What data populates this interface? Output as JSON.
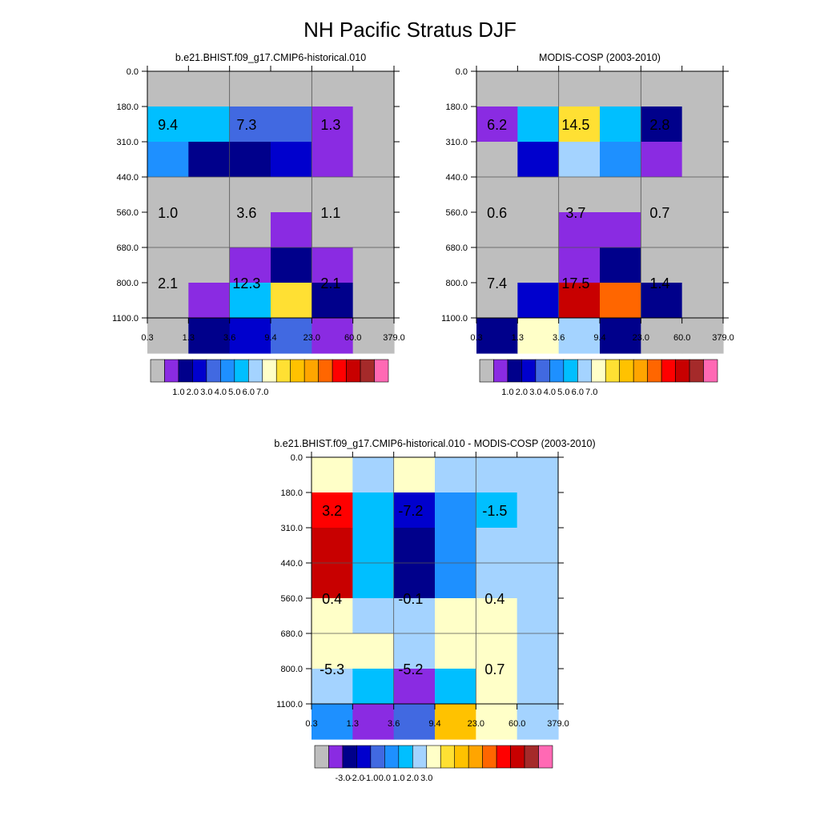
{
  "title": "NH Pacific Stratus DJF",
  "palettes": {
    "main": [
      "#bebebe",
      "#8a2be2",
      "#00008b",
      "#0000cd",
      "#4169e1",
      "#1e90ff",
      "#00bfff",
      "#a4d3ff",
      "#ffffc8",
      "#ffe033",
      "#ffc200",
      "#ffa500",
      "#ff6600",
      "#ff0000",
      "#c80000",
      "#a52a2a",
      "#ff69b4"
    ],
    "diff": [
      "#bebebe",
      "#8a2be2",
      "#00008b",
      "#0000cd",
      "#4169e1",
      "#1e90ff",
      "#00bfff",
      "#a4d3ff",
      "#ffffc8",
      "#ffe033",
      "#ffc200",
      "#ffa500",
      "#ff6600",
      "#ff0000",
      "#c80000",
      "#a52a2a",
      "#ff69b4"
    ]
  },
  "chart_data": [
    {
      "type": "heatmap",
      "title": "b.e21.BHIST.f09_g17.CMIP6-historical.010",
      "x_ticks": [
        "0.3",
        "1.3",
        "3.6",
        "9.4",
        "23.0",
        "60.0",
        "379.0"
      ],
      "y_ticks": [
        "0.0",
        "180.0",
        "310.0",
        "440.0",
        "560.0",
        "680.0",
        "800.0",
        "1100.0"
      ],
      "cells": [
        [
          0,
          0,
          0,
          0,
          0,
          0
        ],
        [
          6,
          6,
          4,
          4,
          1,
          0
        ],
        [
          5,
          2,
          2,
          3,
          1,
          0
        ],
        [
          0,
          0,
          0,
          0,
          0,
          0
        ],
        [
          0,
          0,
          0,
          1,
          0,
          0
        ],
        [
          0,
          0,
          1,
          2,
          1,
          0
        ],
        [
          0,
          1,
          6,
          9,
          2,
          0
        ],
        [
          0,
          2,
          3,
          4,
          1,
          0
        ]
      ],
      "labels": [
        {
          "text": "9.4",
          "x": 0.8,
          "y": 245
        },
        {
          "text": "7.3",
          "x": 6.0,
          "y": 245
        },
        {
          "text": "1.3",
          "x": 40.0,
          "y": 245
        },
        {
          "text": "1.0",
          "x": 0.8,
          "y": 560
        },
        {
          "text": "3.6",
          "x": 6.0,
          "y": 560
        },
        {
          "text": "1.1",
          "x": 40.0,
          "y": 560
        },
        {
          "text": "2.1",
          "x": 0.8,
          "y": 800
        },
        {
          "text": "12.3",
          "x": 6.0,
          "y": 800
        },
        {
          "text": "2.1",
          "x": 40.0,
          "y": 800
        }
      ],
      "colorbar": {
        "palette": "main",
        "labels": [
          "1.0",
          "2.0",
          "3.0",
          "4.0",
          "5.0",
          "6.0",
          "7.0"
        ]
      }
    },
    {
      "type": "heatmap",
      "title": "MODIS-COSP (2003-2010)",
      "x_ticks": [
        "0.3",
        "1.3",
        "3.6",
        "9.4",
        "23.0",
        "60.0",
        "379.0"
      ],
      "y_ticks": [
        "0.0",
        "180.0",
        "310.0",
        "440.0",
        "560.0",
        "680.0",
        "800.0",
        "1100.0"
      ],
      "cells": [
        [
          0,
          0,
          0,
          0,
          0,
          0
        ],
        [
          1,
          6,
          9,
          6,
          2,
          0
        ],
        [
          0,
          3,
          7,
          5,
          1,
          0
        ],
        [
          0,
          0,
          0,
          0,
          0,
          0
        ],
        [
          0,
          0,
          1,
          1,
          0,
          0
        ],
        [
          0,
          0,
          1,
          2,
          0,
          0
        ],
        [
          0,
          3,
          14,
          12,
          2,
          0
        ],
        [
          2,
          8,
          7,
          2,
          0,
          0
        ]
      ],
      "labels": [
        {
          "text": "6.2",
          "x": 0.8,
          "y": 245
        },
        {
          "text": "14.5",
          "x": 6.0,
          "y": 245
        },
        {
          "text": "2.8",
          "x": 40.0,
          "y": 245
        },
        {
          "text": "0.6",
          "x": 0.8,
          "y": 560
        },
        {
          "text": "3.7",
          "x": 6.0,
          "y": 560
        },
        {
          "text": "0.7",
          "x": 40.0,
          "y": 560
        },
        {
          "text": "7.4",
          "x": 0.8,
          "y": 800
        },
        {
          "text": "17.5",
          "x": 6.0,
          "y": 800
        },
        {
          "text": "1.4",
          "x": 40.0,
          "y": 800
        }
      ],
      "colorbar": {
        "palette": "main",
        "labels": [
          "1.0",
          "2.0",
          "3.0",
          "4.0",
          "5.0",
          "6.0",
          "7.0"
        ]
      }
    },
    {
      "type": "heatmap",
      "title": "b.e21.BHIST.f09_g17.CMIP6-historical.010 - MODIS-COSP (2003-2010)",
      "x_ticks": [
        "0.3",
        "1.3",
        "3.6",
        "9.4",
        "23.0",
        "60.0",
        "379.0"
      ],
      "y_ticks": [
        "0.0",
        "180.0",
        "310.0",
        "440.0",
        "560.0",
        "680.0",
        "800.0",
        "1100.0"
      ],
      "cells": [
        [
          8,
          7,
          8,
          7,
          7,
          7
        ],
        [
          13,
          6,
          3,
          5,
          6,
          7
        ],
        [
          14,
          6,
          2,
          5,
          7,
          7
        ],
        [
          14,
          6,
          2,
          5,
          7,
          7
        ],
        [
          8,
          7,
          7,
          8,
          8,
          7
        ],
        [
          8,
          8,
          7,
          8,
          8,
          7
        ],
        [
          7,
          6,
          1,
          6,
          8,
          7
        ],
        [
          5,
          1,
          4,
          10,
          8,
          7
        ]
      ],
      "labels": [
        {
          "text": "3.2",
          "x": 0.8,
          "y": 245
        },
        {
          "text": "-7.2",
          "x": 6.0,
          "y": 245
        },
        {
          "text": "-1.5",
          "x": 40.0,
          "y": 245
        },
        {
          "text": "0.4",
          "x": 0.8,
          "y": 560
        },
        {
          "text": "-0.1",
          "x": 6.0,
          "y": 560
        },
        {
          "text": "0.4",
          "x": 40.0,
          "y": 560
        },
        {
          "text": "-5.3",
          "x": 0.8,
          "y": 800
        },
        {
          "text": "-5.2",
          "x": 6.0,
          "y": 800
        },
        {
          "text": "0.7",
          "x": 40.0,
          "y": 800
        }
      ],
      "colorbar": {
        "palette": "diff",
        "labels": [
          "-3.0",
          "-2.0",
          "-1.0",
          "0.0",
          "1.0",
          "2.0",
          "3.0"
        ]
      }
    }
  ]
}
